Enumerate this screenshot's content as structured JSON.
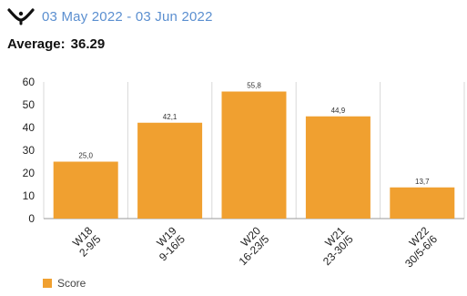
{
  "header": {
    "logo_icon": "wishbone-logo-icon",
    "date_range": "03 May 2022 - 03 Jun 2022"
  },
  "summary": {
    "average_label": "Average:",
    "average_value": "36.29"
  },
  "colors": {
    "accent": "#f0a030",
    "date_text": "#5b8fd0",
    "grid": "#d9d9d9",
    "axis": "#9a9a9a"
  },
  "chart_data": {
    "type": "bar",
    "categories": [
      [
        "W18",
        "2-9/5"
      ],
      [
        "W19",
        "9-16/5"
      ],
      [
        "W20",
        "16-23/5"
      ],
      [
        "W21",
        "23-30/5"
      ],
      [
        "W22",
        "30/5-6/6"
      ]
    ],
    "series": [
      {
        "name": "Score",
        "values": [
          25.0,
          42.1,
          55.8,
          44.9,
          13.7
        ],
        "labels": [
          "25,0",
          "42,1",
          "55,8",
          "44,9",
          "13,7"
        ],
        "color": "#f0a030"
      }
    ],
    "ylim": [
      0,
      60
    ],
    "yticks": [
      0,
      10,
      20,
      30,
      40,
      50,
      60
    ],
    "grid": "vertical",
    "legend_position": "bottom-left"
  }
}
